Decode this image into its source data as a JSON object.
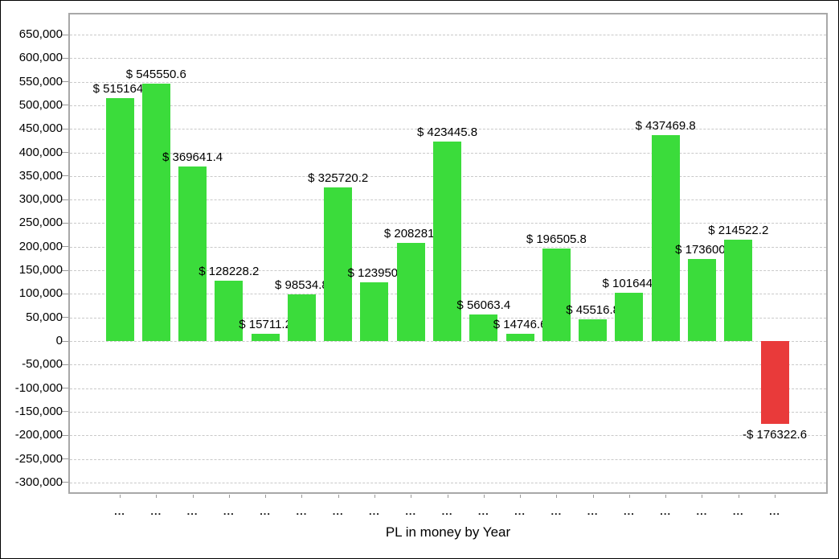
{
  "chart_data": {
    "type": "bar",
    "title": "",
    "xlabel": "PL in money by Year",
    "ylabel": "",
    "ylim": [
      -300000,
      650000
    ],
    "ytick_step": 50000,
    "grid": "horizontal-dashed",
    "legend_position": "none",
    "y_tick_labels": [
      "650,000",
      "600,000",
      "550,000",
      "500,000",
      "450,000",
      "400,000",
      "350,000",
      "300,000",
      "250,000",
      "200,000",
      "150,000",
      "100,000",
      "50,000",
      "0",
      "-50,000",
      "-100,000",
      "-150,000",
      "-200,000",
      "-250,000",
      "-300,000"
    ],
    "categories": [
      "...",
      "...",
      "...",
      "...",
      "...",
      "...",
      "...",
      "...",
      "...",
      "...",
      "...",
      "...",
      "...",
      "...",
      "...",
      "...",
      "...",
      "...",
      "..."
    ],
    "values": [
      515164,
      545550.6,
      369641.4,
      128228.2,
      15711.2,
      98534.8,
      325720.2,
      123950,
      208281,
      423445.8,
      56063.4,
      14746.6,
      196505.8,
      45516.8,
      101644,
      437469.8,
      173600,
      214522.2,
      -176322.6
    ],
    "value_labels": [
      "$ 515164.",
      "$ 545550.6",
      "$ 369641.4",
      "$ 128228.2",
      "$ 15711.2",
      "$ 98534.8",
      "$ 325720.2",
      "$ 123950.",
      "$ 208281.",
      "$ 423445.8",
      "$ 56063.4",
      "$ 14746.6",
      "$ 196505.8",
      "$ 45516.8",
      "$ 101644.",
      "$ 437469.8",
      "$ 173600.",
      "$ 214522.2",
      "-$ 176322.6"
    ],
    "colors": {
      "positive_bar": "#3bdc3b",
      "negative_bar": "#e93a3a",
      "gridline": "#c9c9c9",
      "frame": "#a8a8a8",
      "tick": "#999999",
      "text": "#000000"
    }
  }
}
